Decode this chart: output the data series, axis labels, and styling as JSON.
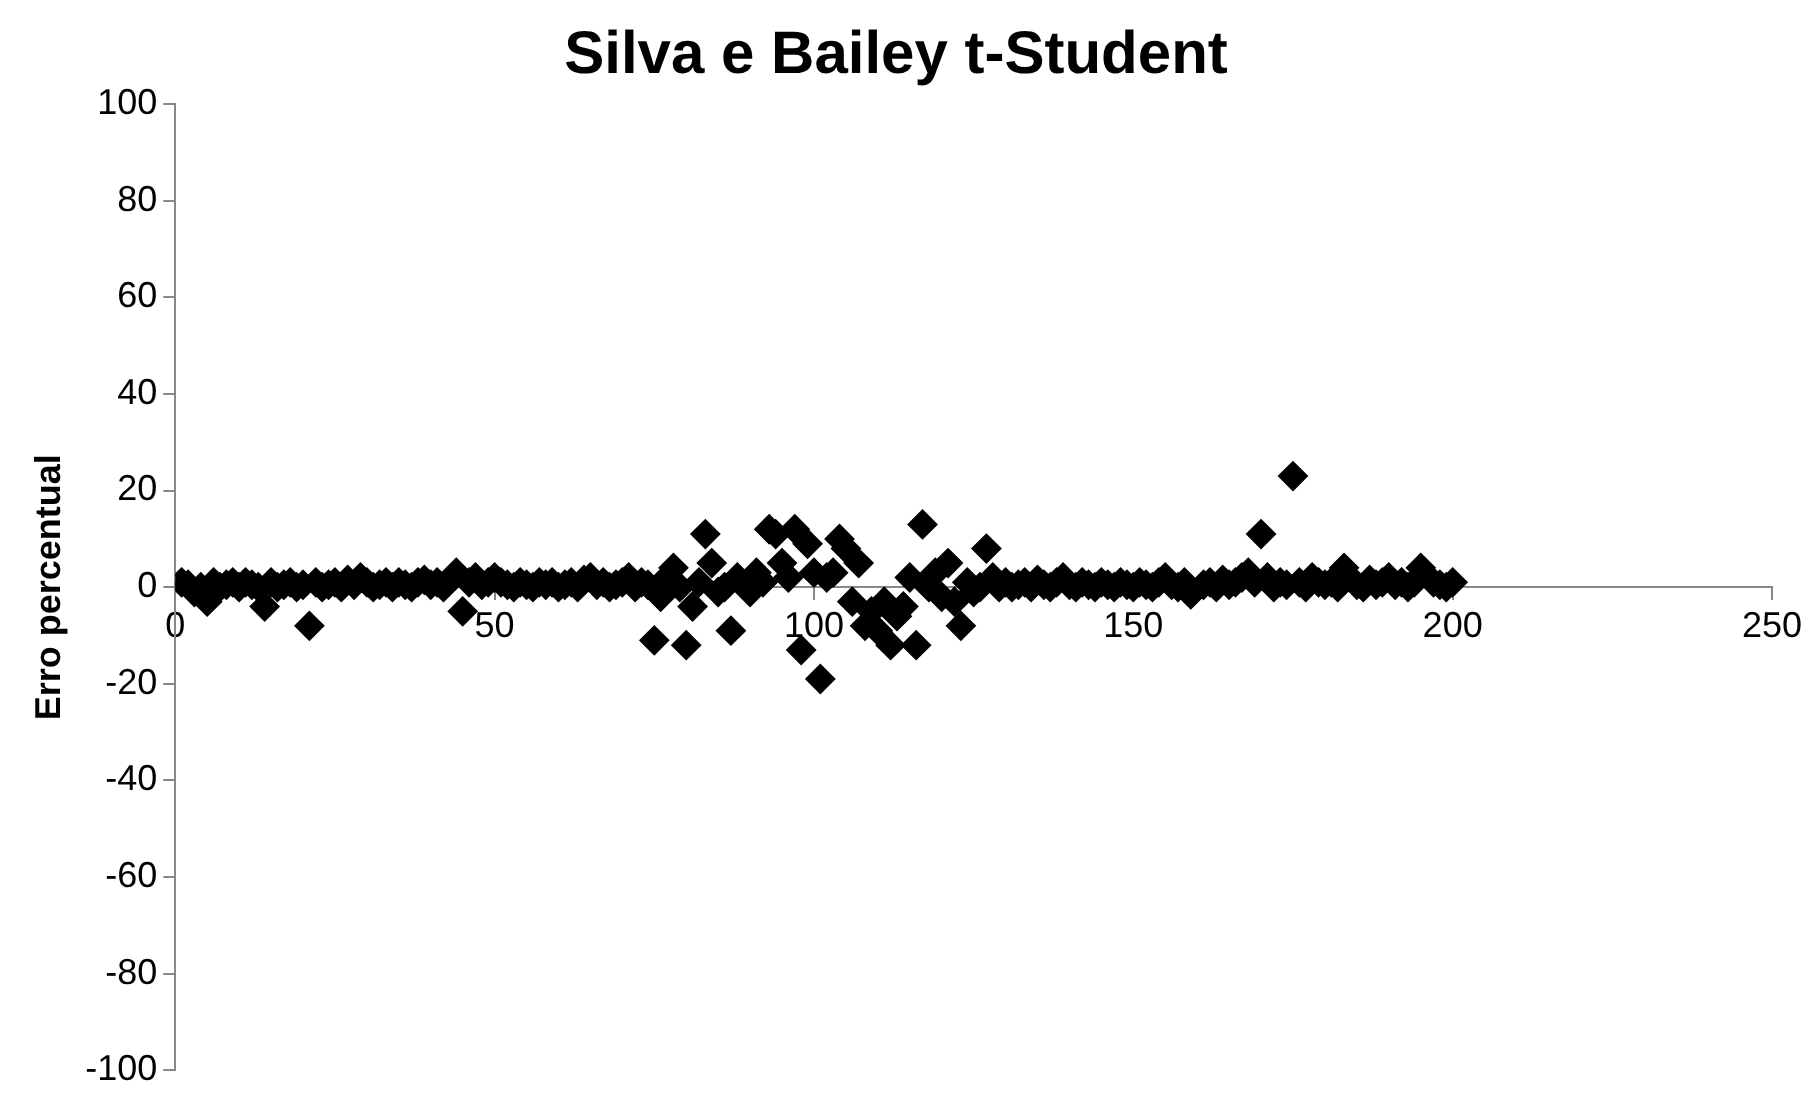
{
  "chart_data": {
    "type": "scatter",
    "title": "Silva e Bailey t-Student",
    "ylabel": "Erro percentual",
    "xlim": [
      0,
      250
    ],
    "xticks": [
      0,
      50,
      100,
      150,
      200,
      250
    ],
    "ylim": [
      -100,
      100
    ],
    "yticks": [
      -100,
      -80,
      -60,
      -40,
      -20,
      0,
      20,
      40,
      60,
      80,
      100
    ],
    "grid": false,
    "legend": false,
    "marker": "diamond",
    "series": [
      {
        "color": "#000000",
        "x": [
          1,
          2,
          3,
          4,
          5,
          6,
          7,
          8,
          9,
          10,
          11,
          12,
          13,
          14,
          15,
          16,
          17,
          18,
          19,
          20,
          21,
          22,
          23,
          24,
          25,
          26,
          27,
          28,
          29,
          30,
          31,
          32,
          33,
          34,
          35,
          36,
          37,
          38,
          39,
          40,
          41,
          42,
          43,
          44,
          45,
          46,
          47,
          48,
          49,
          50,
          51,
          52,
          53,
          54,
          55,
          56,
          57,
          58,
          59,
          60,
          61,
          62,
          63,
          64,
          65,
          66,
          67,
          68,
          69,
          70,
          71,
          72,
          73,
          74,
          75,
          76,
          77,
          78,
          79,
          80,
          81,
          82,
          83,
          84,
          85,
          86,
          87,
          88,
          89,
          90,
          91,
          92,
          93,
          94,
          95,
          96,
          97,
          98,
          99,
          100,
          101,
          102,
          103,
          104,
          105,
          106,
          107,
          108,
          109,
          110,
          111,
          112,
          113,
          114,
          115,
          116,
          117,
          118,
          119,
          120,
          121,
          122,
          123,
          124,
          125,
          126,
          127,
          128,
          129,
          130,
          131,
          132,
          133,
          134,
          135,
          136,
          137,
          138,
          139,
          140,
          141,
          142,
          143,
          144,
          145,
          146,
          147,
          148,
          149,
          150,
          151,
          152,
          153,
          154,
          155,
          156,
          157,
          158,
          159,
          160,
          161,
          162,
          163,
          164,
          165,
          166,
          167,
          168,
          169,
          170,
          171,
          172,
          173,
          174,
          175,
          176,
          177,
          178,
          179,
          180,
          181,
          182,
          183,
          184,
          185,
          186,
          187,
          188,
          189,
          190,
          191,
          192,
          193,
          194,
          195,
          196,
          197,
          198,
          199,
          200
        ],
        "values": [
          1,
          0.5,
          -1,
          0,
          -3,
          1,
          0,
          0.5,
          1,
          0,
          1,
          0.5,
          0,
          -4,
          1,
          0,
          0.5,
          1,
          0,
          0.5,
          -8,
          1,
          0,
          0.5,
          1,
          0,
          1.5,
          0.5,
          2,
          1,
          0,
          0.5,
          1,
          0,
          1,
          0.5,
          0,
          1,
          1.5,
          0.5,
          1,
          0,
          null,
          3,
          -5,
          1,
          2,
          0.5,
          1,
          2,
          1,
          0.5,
          0,
          1,
          0.5,
          0,
          1,
          0.5,
          1,
          0,
          0.5,
          1,
          0,
          1.5,
          2,
          0.5,
          1,
          0,
          0.5,
          1,
          2,
          0,
          1,
          0.5,
          -11,
          -2,
          2,
          4,
          0,
          -12,
          -4,
          1,
          11,
          5,
          -1,
          0,
          -9,
          2,
          null,
          -1,
          3,
          1,
          12,
          11,
          5,
          2,
          12,
          -13,
          9,
          3,
          -19,
          2,
          3,
          10,
          8,
          -3,
          5,
          -8,
          -5,
          -9,
          -3,
          -12,
          -6,
          -4,
          2,
          -12,
          13,
          0,
          3,
          -2,
          5,
          -3,
          -8,
          1,
          -1,
          0,
          8,
          2,
          0,
          1,
          0,
          0.5,
          1,
          0,
          1.5,
          0.5,
          0,
          1,
          2,
          0.5,
          0,
          1,
          0.5,
          0,
          1,
          0.5,
          0,
          1,
          0.5,
          0,
          1,
          0.5,
          0,
          1,
          2,
          0.5,
          0,
          1,
          -1.5,
          null,
          0.5,
          1,
          0,
          1.5,
          0.5,
          1,
          2,
          3,
          1,
          11,
          2,
          0,
          1,
          0.5,
          23,
          1,
          0,
          2,
          1,
          0.5,
          1,
          0,
          4,
          null,
          0.5,
          0,
          1.5,
          0.5,
          1,
          2,
          0.5,
          1,
          0,
          1,
          4,
          null,
          1,
          0.5,
          0,
          1
        ]
      }
    ]
  }
}
